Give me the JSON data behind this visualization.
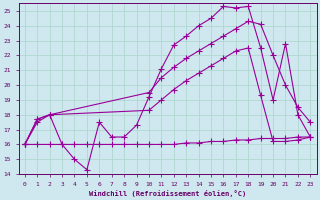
{
  "bg_color": "#cfe8ef",
  "line_color": "#990099",
  "grid_color": "#b0d8d0",
  "xlabel": "Windchill (Refroidissement éolien,°C)",
  "xlabel_color": "#660066",
  "tick_color": "#660066",
  "xlim": [
    -0.5,
    23.5
  ],
  "ylim": [
    14,
    25.5
  ],
  "yticks": [
    14,
    15,
    16,
    17,
    18,
    19,
    20,
    21,
    22,
    23,
    24,
    25
  ],
  "xticks": [
    0,
    1,
    2,
    3,
    4,
    5,
    6,
    7,
    8,
    9,
    10,
    11,
    12,
    13,
    14,
    15,
    16,
    17,
    18,
    19,
    20,
    21,
    22,
    23
  ],
  "s1_x": [
    0,
    1,
    2,
    3,
    4,
    5,
    6,
    7,
    8,
    9,
    10,
    11,
    12,
    13,
    14,
    15,
    16,
    17,
    18,
    19,
    20,
    21,
    22,
    23
  ],
  "s1_y": [
    16.0,
    17.5,
    18.0,
    16.0,
    15.0,
    14.3,
    17.5,
    16.5,
    16.5,
    17.3,
    19.2,
    21.1,
    22.7,
    23.3,
    24.0,
    24.5,
    25.3,
    25.2,
    25.3,
    22.5,
    19.0,
    22.8,
    18.0,
    16.5
  ],
  "s2_x": [
    0,
    1,
    2,
    10,
    11,
    12,
    13,
    14,
    15,
    16,
    17,
    18,
    19,
    20,
    21,
    22,
    23
  ],
  "s2_y": [
    16.0,
    17.7,
    18.0,
    19.5,
    20.5,
    21.2,
    21.8,
    22.3,
    22.8,
    23.3,
    23.8,
    24.3,
    24.1,
    22.0,
    20.0,
    18.5,
    17.5
  ],
  "s3_x": [
    0,
    1,
    2,
    10,
    11,
    12,
    13,
    14,
    15,
    16,
    17,
    18,
    19,
    20,
    21,
    22,
    23
  ],
  "s3_y": [
    16.0,
    17.7,
    18.0,
    18.3,
    19.0,
    19.7,
    20.3,
    20.8,
    21.3,
    21.8,
    22.3,
    22.5,
    19.3,
    16.2,
    16.2,
    16.3,
    16.5
  ],
  "s4_x": [
    0,
    1,
    2,
    3,
    4,
    5,
    6,
    7,
    8,
    9,
    10,
    11,
    12,
    13,
    14,
    15,
    16,
    17,
    18,
    19,
    20,
    21,
    22,
    23
  ],
  "s4_y": [
    16.0,
    16.0,
    16.0,
    16.0,
    16.0,
    16.0,
    16.0,
    16.0,
    16.0,
    16.0,
    16.0,
    16.0,
    16.0,
    16.1,
    16.1,
    16.2,
    16.2,
    16.3,
    16.3,
    16.4,
    16.4,
    16.4,
    16.5,
    16.5
  ]
}
